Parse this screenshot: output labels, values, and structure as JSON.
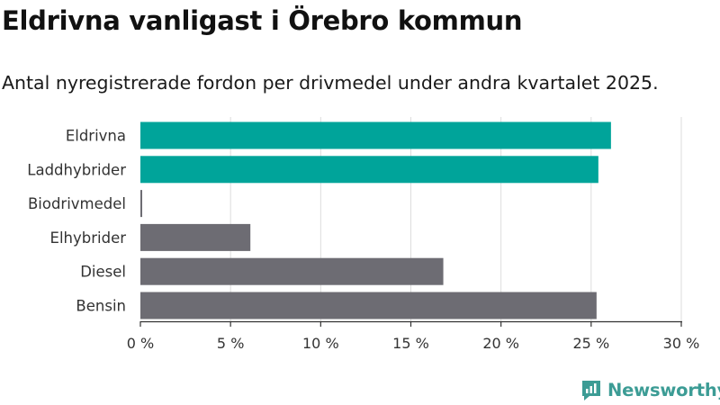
{
  "title": "Eldrivna vanligast i Örebro kommun",
  "subtitle": "Antal nyregistrerade fordon per drivmedel under andra kvartalet 2025.",
  "brand": {
    "name": "Newsworthy",
    "icon": "newsworthy-logo-icon"
  },
  "colors": {
    "highlight": "#00a49a",
    "default": "#6d6c73",
    "grid": "#dddddd",
    "axis": "#333333"
  },
  "chart_data": {
    "type": "bar",
    "orientation": "horizontal",
    "categories": [
      "Eldrivna",
      "Laddhybrider",
      "Biodrivmedel",
      "Elhybrider",
      "Diesel",
      "Bensin"
    ],
    "values": [
      26.1,
      25.4,
      0.1,
      6.1,
      16.8,
      25.3
    ],
    "highlighted": [
      true,
      true,
      false,
      false,
      false,
      false
    ],
    "xlim": [
      0,
      30
    ],
    "xticks": [
      0,
      5,
      10,
      15,
      20,
      25,
      30
    ],
    "xtick_labels": [
      "0 %",
      "5 %",
      "10 %",
      "15 %",
      "20 %",
      "25 %",
      "30 %"
    ],
    "grid": true,
    "xlabel": "",
    "ylabel": ""
  }
}
